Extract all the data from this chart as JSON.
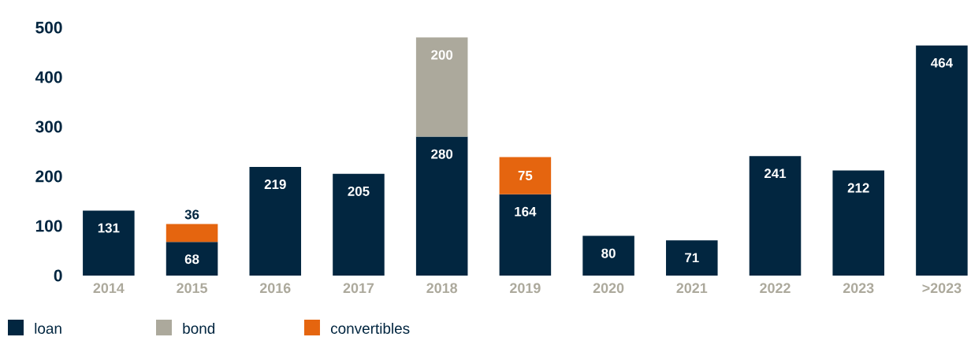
{
  "chart_data": {
    "type": "bar",
    "stacked": true,
    "categories": [
      "2014",
      "2015",
      "2016",
      "2017",
      "2018",
      "2019",
      "2020",
      "2021",
      "2022",
      "2023",
      ">2023"
    ],
    "series": [
      {
        "name": "loan",
        "color": "#022640",
        "values": [
          131,
          68,
          219,
          205,
          280,
          164,
          80,
          71,
          241,
          212,
          464
        ]
      },
      {
        "name": "bond",
        "color": "#aca99c",
        "values": [
          null,
          null,
          null,
          null,
          200,
          null,
          null,
          null,
          null,
          null,
          null
        ]
      },
      {
        "name": "convertibles",
        "color": "#e5650f",
        "values": [
          null,
          36,
          null,
          null,
          null,
          75,
          null,
          null,
          null,
          null,
          null
        ]
      }
    ],
    "ylim": [
      0,
      500
    ],
    "yticks": [
      0,
      100,
      200,
      300,
      400,
      500
    ],
    "data_labels": true,
    "grid": false,
    "legend": "bottom left"
  }
}
